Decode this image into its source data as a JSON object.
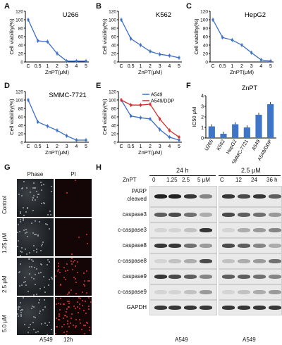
{
  "panels": {
    "A": {
      "letter": "A",
      "title": "U266"
    },
    "B": {
      "letter": "B",
      "title": "K562"
    },
    "C": {
      "letter": "C",
      "title": "HepG2"
    },
    "D": {
      "letter": "D",
      "title": "SMMC-7721"
    },
    "E": {
      "letter": "E",
      "title": ""
    },
    "F": {
      "letter": "F",
      "title": "ZnPT"
    },
    "G": {
      "letter": "G"
    },
    "H": {
      "letter": "H"
    }
  },
  "chart_data": [
    {
      "panel": "A",
      "type": "line",
      "title": "U266",
      "xlabel": "ZnPT(μM)",
      "ylabel": "Cell viability(%)",
      "categories": [
        "C",
        "0.5",
        "1",
        "2",
        "3",
        "4",
        "5"
      ],
      "ylim": [
        0,
        120
      ],
      "yticks": [
        0,
        20,
        40,
        60,
        80,
        100,
        120
      ],
      "series": [
        {
          "values": [
            100,
            50,
            48,
            20,
            2,
            2,
            2
          ]
        }
      ]
    },
    {
      "panel": "B",
      "type": "line",
      "title": "K562",
      "xlabel": "ZnPT(μM)",
      "ylabel": "Cell viability(%)",
      "categories": [
        "C",
        "0.5",
        "1",
        "2",
        "3",
        "4",
        "5"
      ],
      "ylim": [
        0,
        120
      ],
      "yticks": [
        0,
        20,
        40,
        60,
        80,
        100,
        120
      ],
      "series": [
        {
          "values": [
            100,
            55,
            40,
            25,
            18,
            15,
            10
          ]
        }
      ]
    },
    {
      "panel": "C",
      "type": "line",
      "title": "HepG2",
      "xlabel": "ZnPT(μM)",
      "ylabel": "Cell viability(%)",
      "categories": [
        "C",
        "0.5",
        "1",
        "2",
        "3",
        "4",
        "5"
      ],
      "ylim": [
        0,
        120
      ],
      "yticks": [
        0,
        20,
        40,
        60,
        80,
        100,
        120
      ],
      "series": [
        {
          "values": [
            100,
            58,
            52,
            40,
            22,
            5,
            2
          ]
        }
      ]
    },
    {
      "panel": "D",
      "type": "line",
      "title": "SMMC-7721",
      "xlabel": "ZnPT(μM)",
      "ylabel": "Cell viability(%)",
      "categories": [
        "C",
        "0.5",
        "1",
        "2",
        "3",
        "4",
        "5"
      ],
      "ylim": [
        0,
        120
      ],
      "yticks": [
        0,
        20,
        40,
        60,
        80,
        100,
        120
      ],
      "series": [
        {
          "values": [
            100,
            48,
            38,
            28,
            15,
            5,
            5
          ]
        }
      ]
    },
    {
      "panel": "E",
      "type": "line",
      "xlabel": "ZnPT(μM)",
      "ylabel": "Cell viability(%)",
      "categories": [
        "C",
        "0.5",
        "1",
        "2",
        "3",
        "4",
        "5"
      ],
      "ylim": [
        0,
        120
      ],
      "yticks": [
        0,
        20,
        40,
        60,
        80,
        100,
        120
      ],
      "legend": "top-right",
      "series": [
        {
          "name": "A549",
          "color": "#3a6fc4",
          "values": [
            100,
            62,
            58,
            55,
            30,
            12,
            5
          ]
        },
        {
          "name": "A549/DDP",
          "color": "#d42b2b",
          "values": [
            100,
            88,
            88,
            90,
            55,
            28,
            12
          ]
        }
      ]
    },
    {
      "panel": "F",
      "type": "bar",
      "title": "ZnPT",
      "ylabel": "IC50 μM",
      "categories": [
        "U266",
        "K562",
        "HepG2",
        "SMMC-7721",
        "A549",
        "A549/DDP"
      ],
      "values": [
        1.1,
        0.4,
        1.3,
        1.0,
        2.2,
        3.2
      ],
      "ylim": [
        0,
        4
      ],
      "yticks": [
        0,
        1,
        2,
        3,
        4
      ],
      "color": "#3f75c6"
    }
  ],
  "G": {
    "columns": [
      "Phase",
      "PI"
    ],
    "rows": [
      "Control",
      "1.25 μM",
      "2.5 μM",
      "5.0 μM"
    ],
    "footer_cell": "A549",
    "footer_time": "12h"
  },
  "H": {
    "left": {
      "header": "24 h",
      "treatment": "ZnPT",
      "lanes": [
        "0",
        "1.25",
        "2.5",
        "5 μM"
      ],
      "footer": "A549"
    },
    "right": {
      "header": "2.5 μM",
      "lanes": [
        "C",
        "12",
        "24",
        "36 h"
      ],
      "footer": "A549"
    },
    "proteins": [
      "PARP",
      "cleaved",
      "caspase3",
      "c-caspase3",
      "caspase8",
      "c-caspase8",
      "caspase9",
      "c-caspase9",
      "GAPDH"
    ]
  }
}
